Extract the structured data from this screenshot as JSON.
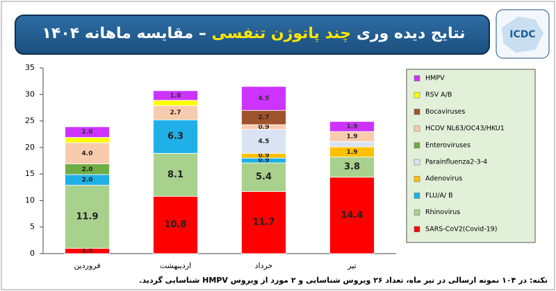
{
  "header": {
    "title_start": "نتایج دیده وری",
    "title_highlight": "چند پاتوژن تنفسی",
    "title_end": "– مقایسه ماهانه ۱۴۰۴",
    "logo": "ICDC"
  },
  "chart_data": {
    "type": "stacked_bar",
    "categories": [
      "فروردین",
      "اردیبهشت",
      "خرداد",
      "تیر"
    ],
    "series": [
      {
        "name": "SARS-CoV2(Covid-19)",
        "color": "#ff0000",
        "values": [
          1.0,
          10.8,
          11.7,
          14.4
        ],
        "value_labels": [
          "1.0",
          "10.8",
          "11.7",
          "14.4"
        ]
      },
      {
        "name": "Rhinovirus",
        "color": "#a9d18e",
        "values": [
          11.9,
          8.1,
          5.4,
          3.8
        ],
        "value_labels": [
          "11.9",
          "8.1",
          "5.4",
          "3.8"
        ]
      },
      {
        "name": "FLU/A/ B",
        "color": "#1fb0e8",
        "values": [
          2.0,
          6.3,
          0.9,
          null
        ],
        "value_labels": [
          "2.0",
          "6.3",
          "0.9",
          null
        ]
      },
      {
        "name": "Adenovirus",
        "color": "#ffc000",
        "values": [
          null,
          null,
          0.9,
          1.9
        ],
        "value_labels": [
          null,
          null,
          "0.9",
          "1.9"
        ]
      },
      {
        "name": "Parainfluenza2-3-4",
        "color": "#dae3f3",
        "values": [
          null,
          null,
          4.5,
          1.0
        ],
        "value_labels": [
          null,
          null,
          "4.5",
          null
        ]
      },
      {
        "name": "Enteroviruses",
        "color": "#70ad47",
        "values": [
          2.0,
          null,
          null,
          null
        ],
        "value_labels": [
          "2.0",
          null,
          null,
          null
        ]
      },
      {
        "name": "HCOV NL63/OC43/HKU1",
        "color": "#f8cbad",
        "values": [
          4.0,
          2.7,
          0.9,
          1.9
        ],
        "value_labels": [
          "4.0",
          "2.7",
          "0.9",
          "1.9"
        ]
      },
      {
        "name": "Bocaviruses",
        "color": "#a0522d",
        "values": [
          null,
          null,
          2.7,
          null
        ],
        "value_labels": [
          null,
          null,
          "2.7",
          null
        ]
      },
      {
        "name": "RSV A/B",
        "color": "#ffff00",
        "values": [
          1.0,
          1.0,
          null,
          null
        ],
        "value_labels": [
          null,
          null,
          null,
          null
        ]
      },
      {
        "name": "HMPV",
        "color": "#cc33ff",
        "values": [
          2.0,
          1.8,
          4.5,
          1.9
        ],
        "value_labels": [
          "2.0",
          "1.8",
          "4.5",
          "1.9"
        ]
      }
    ],
    "ylim": [
      0,
      35
    ],
    "yticks": [
      0,
      5,
      10,
      15,
      20,
      25,
      30,
      35
    ],
    "grid": false,
    "legend": "right"
  },
  "footer": {
    "note": "نکته: در ۱۰۴ نمونه ارسالی در تیر ماه، تعداد ۲۶ ویروس شناسایی و ۲ مورد از ویروس HMPV شناسایی گردید."
  }
}
